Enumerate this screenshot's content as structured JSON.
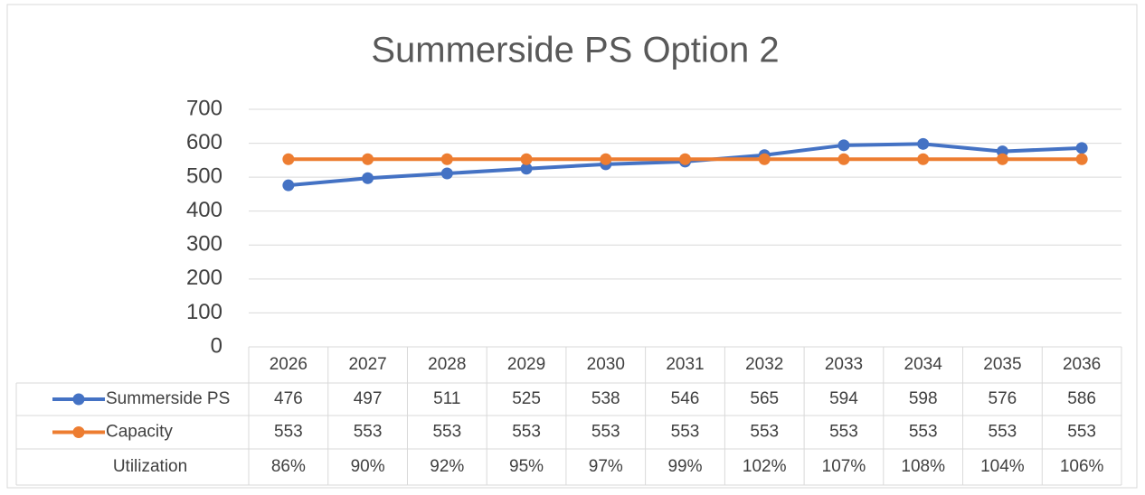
{
  "chart_data": {
    "type": "line",
    "title": "Summerside PS Option 2",
    "categories": [
      "2026",
      "2027",
      "2028",
      "2029",
      "2030",
      "2031",
      "2032",
      "2033",
      "2034",
      "2035",
      "2036"
    ],
    "series": [
      {
        "name": "Summerside PS",
        "color": "#4472c4",
        "values": [
          476,
          497,
          511,
          525,
          538,
          546,
          565,
          594,
          598,
          576,
          586
        ]
      },
      {
        "name": "Capacity",
        "color": "#ed7d31",
        "values": [
          553,
          553,
          553,
          553,
          553,
          553,
          553,
          553,
          553,
          553,
          553
        ]
      }
    ],
    "table_rows": [
      {
        "name": "Utilization",
        "values": [
          "86%",
          "90%",
          "92%",
          "95%",
          "97%",
          "99%",
          "102%",
          "107%",
          "108%",
          "104%",
          "106%"
        ]
      }
    ],
    "ylim": [
      0,
      700
    ],
    "yticks": [
      0,
      100,
      200,
      300,
      400,
      500,
      600,
      700
    ],
    "grid": true
  }
}
